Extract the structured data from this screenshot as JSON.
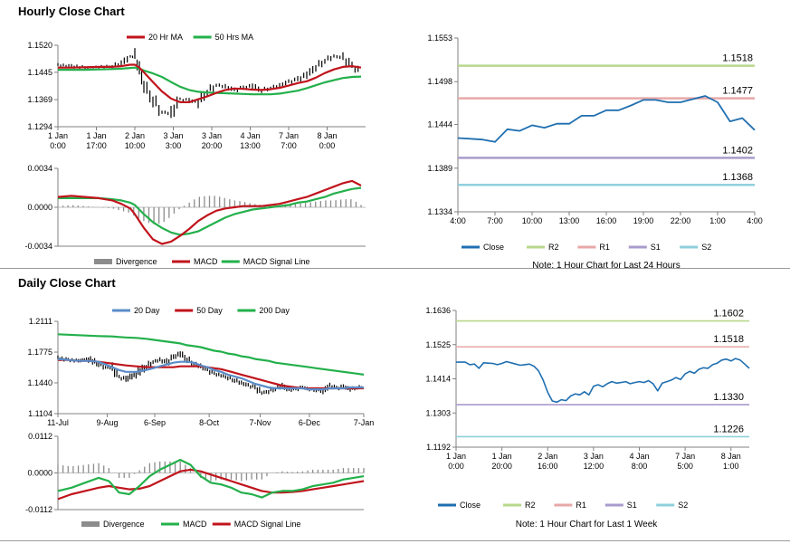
{
  "hourly_title": "Hourly Close Chart",
  "daily_title": "Daily Close Chart",
  "chart_data": [
    {
      "id": "hourly-price",
      "type": "line",
      "legend": [
        "20 Hr MA",
        "50 Hrs MA"
      ],
      "colors": {
        "ma_short": "#c0141c",
        "ma_long": "#23b04b",
        "price": "#000000"
      },
      "ylim": [
        1.1294,
        1.152
      ],
      "yticks": [
        "1.1520",
        "1.1445",
        "1.1369",
        "1.1294"
      ],
      "ytick_values": [
        1.152,
        1.1445,
        1.1369,
        1.1294
      ],
      "xlim": [
        0,
        136
      ],
      "xticks": [
        {
          "x": 0,
          "l1": "1 Jan",
          "l2": "0:00"
        },
        {
          "x": 17,
          "l1": "1 Jan",
          "l2": "17:00"
        },
        {
          "x": 34,
          "l1": "2 Jan",
          "l2": "10:00"
        },
        {
          "x": 51,
          "l1": "3 Jan",
          "l2": "3:00"
        },
        {
          "x": 68,
          "l1": "3 Jan",
          "l2": "20:00"
        },
        {
          "x": 85,
          "l1": "4 Jan",
          "l2": "13:00"
        },
        {
          "x": 102,
          "l1": "7 Jan",
          "l2": "7:00"
        },
        {
          "x": 119,
          "l1": "8 Jan",
          "l2": "0:00"
        }
      ],
      "x": [
        0,
        6,
        12,
        18,
        24,
        28,
        32,
        34,
        36,
        38,
        42,
        46,
        50,
        54,
        58,
        62,
        66,
        70,
        74,
        78,
        82,
        86,
        90,
        94,
        98,
        102,
        106,
        110,
        114,
        118,
        122,
        126,
        130,
        134
      ],
      "close": [
        1.1465,
        1.1462,
        1.1458,
        1.146,
        1.1462,
        1.147,
        1.1488,
        1.149,
        1.1455,
        1.141,
        1.137,
        1.1335,
        1.133,
        1.137,
        1.1368,
        1.1362,
        1.1392,
        1.141,
        1.1405,
        1.1395,
        1.1402,
        1.1408,
        1.1395,
        1.1402,
        1.1408,
        1.1418,
        1.1425,
        1.1438,
        1.146,
        1.1478,
        1.149,
        1.1485,
        1.1462,
        1.1445
      ],
      "ma20": [
        1.1458,
        1.1458,
        1.1459,
        1.146,
        1.146,
        1.1462,
        1.1466,
        1.1466,
        1.1458,
        1.1445,
        1.1418,
        1.1392,
        1.1372,
        1.1362,
        1.1362,
        1.137,
        1.1378,
        1.1388,
        1.1396,
        1.14,
        1.1399,
        1.1397,
        1.1396,
        1.1398,
        1.1402,
        1.1408,
        1.1415,
        1.142,
        1.143,
        1.1443,
        1.1453,
        1.146,
        1.1462,
        1.1458
      ],
      "ma50": [
        1.1452,
        1.1452,
        1.1452,
        1.1453,
        1.1454,
        1.1455,
        1.1457,
        1.1458,
        1.1455,
        1.145,
        1.1442,
        1.1432,
        1.1418,
        1.1405,
        1.1396,
        1.1391,
        1.1389,
        1.1388,
        1.1387,
        1.1386,
        1.1385,
        1.1384,
        1.1384,
        1.1384,
        1.1386,
        1.139,
        1.1394,
        1.1401,
        1.1409,
        1.1417,
        1.1423,
        1.1429,
        1.1432,
        1.1433
      ]
    },
    {
      "id": "hourly-macd",
      "type": "line",
      "legend": [
        "Divergence",
        "MACD",
        "MACD Signal Line"
      ],
      "colors": {
        "macd": "#c0141c",
        "signal": "#23b04b",
        "divergence": "#8c8c8c"
      },
      "ylim": [
        -0.0034,
        0.0034
      ],
      "yticks": [
        "0.0034",
        "0.0000",
        "-0.0034"
      ],
      "ytick_values": [
        0.0034,
        0,
        -0.0034
      ],
      "xlim": [
        0,
        136
      ],
      "x": [
        0,
        6,
        12,
        18,
        24,
        28,
        32,
        34,
        38,
        42,
        46,
        50,
        54,
        58,
        62,
        66,
        70,
        74,
        78,
        82,
        86,
        90,
        94,
        98,
        102,
        106,
        110,
        114,
        118,
        122,
        126,
        130,
        134
      ],
      "macd": [
        0.0009,
        0.001,
        0.0009,
        0.0008,
        0.0006,
        0.0003,
        -0.0001,
        -0.0006,
        -0.0018,
        -0.0028,
        -0.0032,
        -0.003,
        -0.0025,
        -0.0019,
        -0.0012,
        -0.0007,
        -0.0003,
        -0.0001,
        0.0,
        0.0001,
        0.0001,
        0.0001,
        0.0002,
        0.0003,
        0.0005,
        0.0007,
        0.0009,
        0.0012,
        0.0015,
        0.0018,
        0.0021,
        0.0023,
        0.0019
      ],
      "signal": [
        0.0008,
        0.0008,
        0.0008,
        0.0008,
        0.0007,
        0.0006,
        0.0004,
        0.0002,
        -0.0006,
        -0.0013,
        -0.0018,
        -0.0022,
        -0.0024,
        -0.0023,
        -0.0021,
        -0.0017,
        -0.0013,
        -0.0009,
        -0.0006,
        -0.0004,
        -0.0002,
        -0.0001,
        0.0,
        0.0001,
        0.0002,
        0.0004,
        0.0005,
        0.0007,
        0.0009,
        0.0012,
        0.0014,
        0.0016,
        0.0017
      ]
    },
    {
      "id": "hourly-24h",
      "type": "line",
      "legend": [
        "Close",
        "R2",
        "R1",
        "S1",
        "S2"
      ],
      "colors": {
        "close": "#1f6fb0",
        "R2": "#b8d78c",
        "R1": "#e8a8a8",
        "S1": "#a99bcc",
        "S2": "#8fcfdc"
      },
      "note": "Note: 1 Hour Chart for Last 24 Hours",
      "ylim": [
        1.1334,
        1.1553
      ],
      "yticks": [
        "1.1553",
        "1.1498",
        "1.1444",
        "1.1389",
        "1.1334"
      ],
      "ytick_values": [
        1.1553,
        1.1498,
        1.1444,
        1.1389,
        1.1334
      ],
      "xlim": [
        0,
        24
      ],
      "xticks": [
        {
          "x": 0,
          "l1": "4:00"
        },
        {
          "x": 3,
          "l1": "7:00"
        },
        {
          "x": 6,
          "l1": "10:00"
        },
        {
          "x": 9,
          "l1": "13:00"
        },
        {
          "x": 12,
          "l1": "16:00"
        },
        {
          "x": 15,
          "l1": "19:00"
        },
        {
          "x": 18,
          "l1": "22:00"
        },
        {
          "x": 21,
          "l1": "1:00"
        },
        {
          "x": 24,
          "l1": "4:00"
        }
      ],
      "x": [
        0,
        1,
        2,
        3,
        4,
        5,
        6,
        7,
        8,
        9,
        10,
        11,
        12,
        13,
        14,
        15,
        16,
        17,
        18,
        19,
        20,
        21,
        22,
        23,
        24
      ],
      "close": [
        1.1427,
        1.1426,
        1.1425,
        1.1422,
        1.1438,
        1.1436,
        1.1443,
        1.144,
        1.1445,
        1.1445,
        1.1455,
        1.1455,
        1.1462,
        1.1462,
        1.1468,
        1.1475,
        1.1475,
        1.1472,
        1.1472,
        1.1476,
        1.148,
        1.1472,
        1.1448,
        1.1452,
        1.1437
      ],
      "levels": [
        {
          "name": "R2",
          "value": 1.1518,
          "label": "1.1518"
        },
        {
          "name": "R1",
          "value": 1.1477,
          "label": "1.1477"
        },
        {
          "name": "S1",
          "value": 1.1402,
          "label": "1.1402"
        },
        {
          "name": "S2",
          "value": 1.1368,
          "label": "1.1368"
        }
      ]
    },
    {
      "id": "daily-price",
      "type": "line",
      "legend": [
        "20 Day",
        "50 Day",
        "200 Day"
      ],
      "colors": {
        "ma20": "#5b8cc9",
        "ma50": "#c0141c",
        "ma200": "#23b04b",
        "price": "#000000"
      },
      "ylim": [
        1.1104,
        1.2111
      ],
      "yticks": [
        "1.2111",
        "1.1775",
        "1.1440",
        "1.1104"
      ],
      "ytick_values": [
        1.2111,
        1.1775,
        1.144,
        1.1104
      ],
      "xlim": [
        0,
        180
      ],
      "xticks": [
        {
          "x": 0,
          "l1": "11-Jul"
        },
        {
          "x": 29,
          "l1": "9-Aug"
        },
        {
          "x": 57,
          "l1": "6-Sep"
        },
        {
          "x": 89,
          "l1": "8-Oct"
        },
        {
          "x": 119,
          "l1": "7-Nov"
        },
        {
          "x": 148,
          "l1": "6-Dec"
        },
        {
          "x": 180,
          "l1": "7-Jan"
        }
      ],
      "x": [
        0,
        6,
        12,
        18,
        24,
        28,
        32,
        36,
        40,
        46,
        52,
        56,
        60,
        64,
        68,
        72,
        76,
        80,
        84,
        88,
        92,
        96,
        100,
        104,
        108,
        112,
        116,
        120,
        124,
        128,
        132,
        136,
        140,
        144,
        148,
        152,
        156,
        160,
        164,
        168,
        172,
        176,
        180
      ],
      "close": [
        1.171,
        1.169,
        1.168,
        1.17,
        1.165,
        1.161,
        1.16,
        1.15,
        1.148,
        1.154,
        1.162,
        1.167,
        1.169,
        1.166,
        1.172,
        1.176,
        1.17,
        1.165,
        1.162,
        1.158,
        1.154,
        1.152,
        1.15,
        1.147,
        1.144,
        1.141,
        1.139,
        1.133,
        1.135,
        1.138,
        1.141,
        1.136,
        1.137,
        1.139,
        1.137,
        1.136,
        1.135,
        1.141,
        1.138,
        1.14,
        1.137,
        1.139,
        1.14
      ],
      "ma20": [
        1.17,
        1.169,
        1.168,
        1.168,
        1.167,
        1.164,
        1.161,
        1.158,
        1.156,
        1.156,
        1.158,
        1.16,
        1.162,
        1.164,
        1.166,
        1.167,
        1.167,
        1.166,
        1.163,
        1.161,
        1.158,
        1.156,
        1.153,
        1.151,
        1.149,
        1.146,
        1.143,
        1.141,
        1.139,
        1.138,
        1.138,
        1.138,
        1.138,
        1.138,
        1.137,
        1.137,
        1.137,
        1.138,
        1.138,
        1.138,
        1.139,
        1.139,
        1.139
      ],
      "ma50": [
        1.169,
        1.169,
        1.168,
        1.168,
        1.167,
        1.166,
        1.165,
        1.164,
        1.163,
        1.162,
        1.161,
        1.161,
        1.161,
        1.161,
        1.161,
        1.162,
        1.162,
        1.162,
        1.162,
        1.161,
        1.16,
        1.159,
        1.157,
        1.155,
        1.153,
        1.151,
        1.149,
        1.147,
        1.145,
        1.143,
        1.141,
        1.14,
        1.139,
        1.138,
        1.138,
        1.138,
        1.138,
        1.138,
        1.138,
        1.138,
        1.138,
        1.138,
        1.138
      ],
      "ma200": [
        1.197,
        1.1965,
        1.196,
        1.1955,
        1.195,
        1.1948,
        1.1946,
        1.194,
        1.1935,
        1.193,
        1.192,
        1.191,
        1.19,
        1.189,
        1.188,
        1.187,
        1.185,
        1.184,
        1.183,
        1.181,
        1.179,
        1.178,
        1.176,
        1.175,
        1.173,
        1.172,
        1.17,
        1.169,
        1.168,
        1.166,
        1.165,
        1.164,
        1.163,
        1.162,
        1.161,
        1.16,
        1.159,
        1.158,
        1.157,
        1.156,
        1.155,
        1.154,
        1.153
      ]
    },
    {
      "id": "daily-macd",
      "type": "line",
      "legend": [
        "Divergence",
        "MACD",
        "MACD Signal Line"
      ],
      "colors": {
        "macd": "#23b04b",
        "signal": "#c0141c",
        "divergence": "#8c8c8c"
      },
      "ylim": [
        -0.0112,
        0.0112
      ],
      "yticks": [
        "0.0112",
        "0.0000",
        "-0.0112"
      ],
      "ytick_values": [
        0.0112,
        0,
        -0.0112
      ],
      "xlim": [
        0,
        180
      ],
      "x": [
        0,
        8,
        16,
        24,
        30,
        36,
        42,
        48,
        54,
        60,
        66,
        72,
        78,
        84,
        90,
        96,
        102,
        108,
        114,
        120,
        126,
        132,
        138,
        144,
        150,
        156,
        162,
        168,
        174,
        180
      ],
      "macd": [
        -0.0055,
        -0.0045,
        -0.003,
        -0.0015,
        -0.0025,
        -0.006,
        -0.0065,
        -0.004,
        -0.001,
        0.001,
        0.0025,
        0.004,
        0.0025,
        -0.001,
        -0.003,
        -0.0035,
        -0.0045,
        -0.006,
        -0.0065,
        -0.0075,
        -0.006,
        -0.0055,
        -0.0055,
        -0.005,
        -0.004,
        -0.0035,
        -0.003,
        -0.002,
        -0.0015,
        -0.001
      ],
      "signal": [
        -0.008,
        -0.0065,
        -0.0055,
        -0.0045,
        -0.004,
        -0.0045,
        -0.005,
        -0.0048,
        -0.004,
        -0.0025,
        -0.001,
        0.0005,
        0.001,
        0.0005,
        -0.0005,
        -0.0015,
        -0.0025,
        -0.0035,
        -0.0045,
        -0.0055,
        -0.006,
        -0.006,
        -0.0058,
        -0.0055,
        -0.005,
        -0.0045,
        -0.004,
        -0.0035,
        -0.003,
        -0.0025
      ]
    },
    {
      "id": "daily-week",
      "type": "line",
      "legend": [
        "Close",
        "R2",
        "R1",
        "S1",
        "S2"
      ],
      "colors": {
        "close": "#1f6fb0",
        "R2": "#b8d78c",
        "R1": "#e8a8a8",
        "S1": "#a99bcc",
        "S2": "#8fcfdc"
      },
      "note": "Note: 1 Hour Chart for Last 1 Week",
      "ylim": [
        1.1192,
        1.1636
      ],
      "yticks": [
        "1.1636",
        "1.1525",
        "1.1414",
        "1.1303",
        "1.1192"
      ],
      "ytick_values": [
        1.1636,
        1.1525,
        1.1414,
        1.1303,
        1.1192
      ],
      "xlim": [
        0,
        128
      ],
      "xticks": [
        {
          "x": 0,
          "l1": "1 Jan",
          "l2": "0:00"
        },
        {
          "x": 20,
          "l1": "1 Jan",
          "l2": "20:00"
        },
        {
          "x": 40,
          "l1": "2 Jan",
          "l2": "16:00"
        },
        {
          "x": 60,
          "l1": "3 Jan",
          "l2": "12:00"
        },
        {
          "x": 80,
          "l1": "4 Jan",
          "l2": "8:00"
        },
        {
          "x": 100,
          "l1": "7 Jan",
          "l2": "5:00"
        },
        {
          "x": 120,
          "l1": "8 Jan",
          "l2": "1:00"
        }
      ],
      "x": [
        0,
        4,
        6,
        8,
        10,
        12,
        14,
        16,
        18,
        20,
        22,
        24,
        26,
        28,
        30,
        32,
        34,
        36,
        38,
        40,
        42,
        44,
        46,
        48,
        50,
        52,
        54,
        56,
        58,
        60,
        62,
        64,
        66,
        68,
        70,
        72,
        74,
        76,
        78,
        80,
        82,
        84,
        86,
        88,
        90,
        92,
        94,
        96,
        98,
        100,
        102,
        104,
        106,
        108,
        110,
        112,
        114,
        116,
        118,
        120,
        122,
        124,
        126,
        128
      ],
      "close": [
        1.1468,
        1.1468,
        1.146,
        1.1462,
        1.1448,
        1.1466,
        1.1465,
        1.1464,
        1.146,
        1.1464,
        1.147,
        1.1466,
        1.1462,
        1.1458,
        1.146,
        1.1462,
        1.1455,
        1.144,
        1.141,
        1.137,
        1.1342,
        1.1338,
        1.1346,
        1.1343,
        1.1358,
        1.1365,
        1.1362,
        1.1372,
        1.1362,
        1.139,
        1.1395,
        1.1388,
        1.1398,
        1.1405,
        1.14,
        1.1402,
        1.1405,
        1.1398,
        1.1402,
        1.1405,
        1.1402,
        1.1408,
        1.1398,
        1.1375,
        1.14,
        1.1405,
        1.141,
        1.1418,
        1.1412,
        1.143,
        1.1438,
        1.1432,
        1.1445,
        1.145,
        1.1448,
        1.146,
        1.1465,
        1.1475,
        1.1478,
        1.1472,
        1.148,
        1.1475,
        1.1462,
        1.1448
      ],
      "levels": [
        {
          "name": "R2",
          "value": 1.1602,
          "label": "1.1602"
        },
        {
          "name": "R1",
          "value": 1.1518,
          "label": "1.1518"
        },
        {
          "name": "S1",
          "value": 1.133,
          "label": "1.1330"
        },
        {
          "name": "S2",
          "value": 1.1226,
          "label": "1.1226"
        }
      ]
    }
  ]
}
